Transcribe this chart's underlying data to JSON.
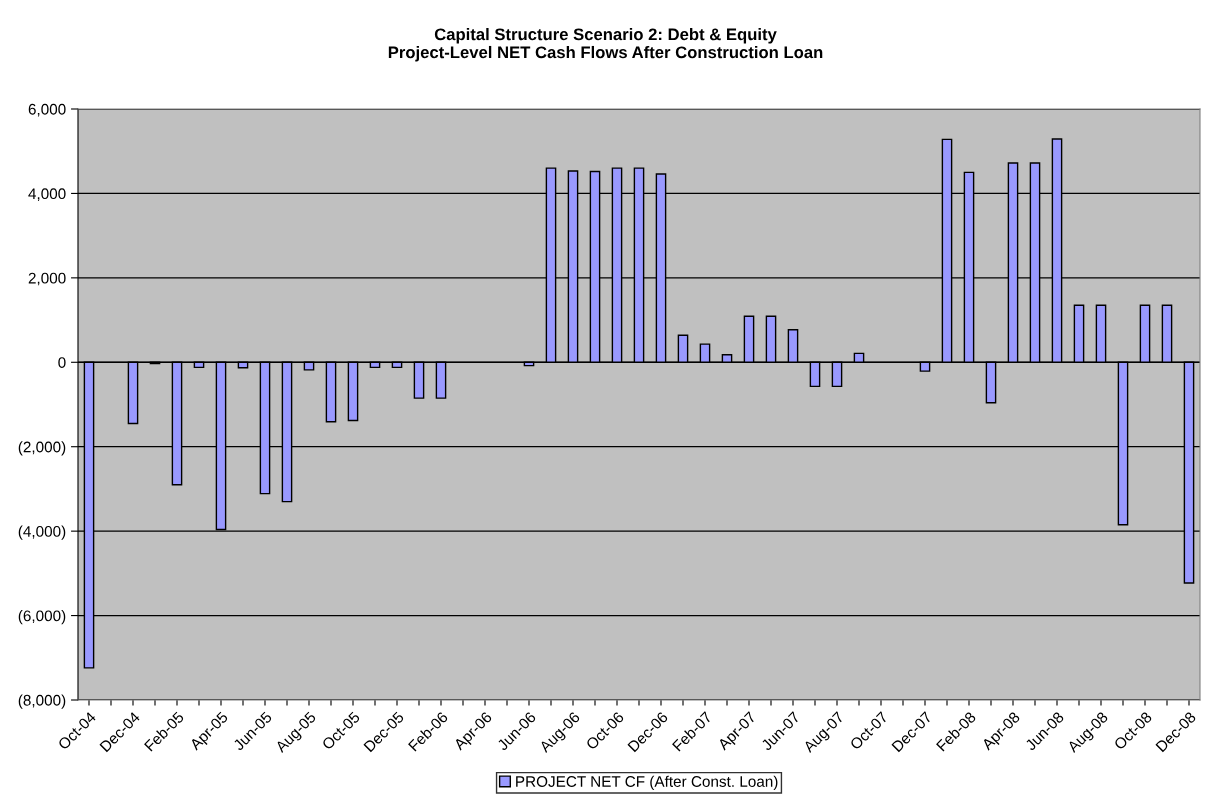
{
  "chart_data": {
    "type": "bar",
    "title": "Capital Structure Scenario 2: Debt & Equity\nProject-Level NET Cash Flows After Construction Loan",
    "categories": [
      "Oct-04",
      null,
      "Dec-04",
      null,
      "Feb-05",
      null,
      "Apr-05",
      null,
      "Jun-05",
      null,
      "Aug-05",
      null,
      "Oct-05",
      null,
      "Dec-05",
      null,
      "Feb-06",
      null,
      "Apr-06",
      null,
      "Jun-06",
      null,
      "Aug-06",
      null,
      "Oct-06",
      null,
      "Dec-06",
      null,
      "Feb-07",
      null,
      "Apr-07",
      null,
      "Jun-07",
      null,
      "Aug-07",
      null,
      "Oct-07",
      null,
      "Dec-07",
      null,
      "Feb-08",
      null,
      "Apr-08",
      null,
      "Jun-08",
      null,
      "Aug-08",
      null,
      "Oct-08",
      null,
      "Dec-08"
    ],
    "series": [
      {
        "name": "PROJECT NET CF (After Const. Loan)",
        "color": "#9999ff",
        "values": [
          -7240,
          null,
          -1450,
          -30,
          -2900,
          -120,
          -3960,
          -130,
          -3110,
          -3300,
          -180,
          -1410,
          -1380,
          -120,
          -120,
          -850,
          -850,
          null,
          null,
          null,
          -80,
          4600,
          4530,
          4520,
          4600,
          4600,
          4460,
          640,
          430,
          180,
          1090,
          1090,
          770,
          -570,
          -570,
          210,
          null,
          null,
          -210,
          5280,
          4500,
          -960,
          4720,
          4720,
          5290,
          1350,
          1350,
          -3850,
          1350,
          1350,
          -5230
        ]
      }
    ],
    "ylim": [
      -8000,
      6000
    ],
    "yticks": [
      {
        "value": -8000,
        "label": "(8,000)"
      },
      {
        "value": -6000,
        "label": "(6,000)"
      },
      {
        "value": -4000,
        "label": "(4,000)"
      },
      {
        "value": -2000,
        "label": "(2,000)"
      },
      {
        "value": 0,
        "label": "0"
      },
      {
        "value": 2000,
        "label": "2,000"
      },
      {
        "value": 4000,
        "label": "4,000"
      },
      {
        "value": 6000,
        "label": "6,000"
      }
    ],
    "grid": "y",
    "legend": "bottom"
  }
}
